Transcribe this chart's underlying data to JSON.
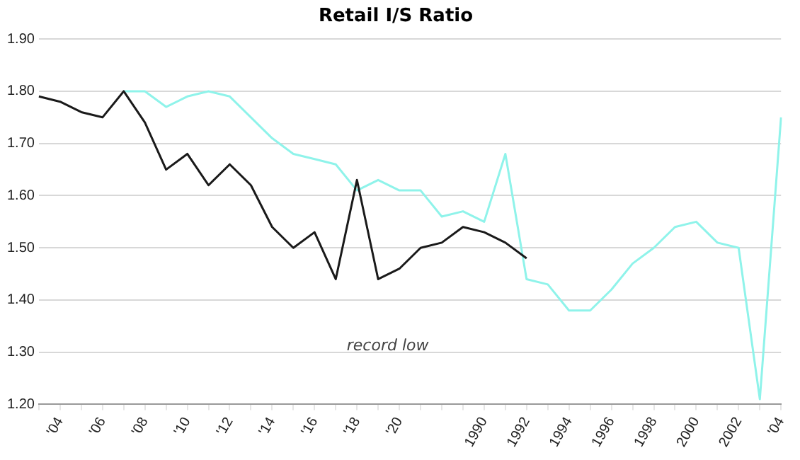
{
  "chart_data": {
    "type": "line",
    "title": "Retail I/S Ratio",
    "categories": [
      null,
      "'04",
      null,
      "'06",
      null,
      "'08",
      null,
      "'10",
      null,
      "'12",
      null,
      "'14",
      null,
      "'16",
      null,
      "'18",
      null,
      "'20",
      null,
      null,
      null,
      "1990",
      null,
      "1992",
      null,
      "1994",
      null,
      "1996",
      null,
      "1998",
      null,
      "2000",
      null,
      "2002",
      null,
      "'04"
    ],
    "ylim": [
      1.2,
      1.9
    ],
    "yticks": [
      {
        "value": 1.2,
        "label": "1.20"
      },
      {
        "value": 1.3,
        "label": "1.30"
      },
      {
        "value": 1.4,
        "label": "1.40"
      },
      {
        "value": 1.5,
        "label": "1.50"
      },
      {
        "value": 1.6,
        "label": "1.60"
      },
      {
        "value": 1.7,
        "label": "1.70"
      },
      {
        "value": 1.8,
        "label": "1.80"
      },
      {
        "value": 1.9,
        "label": "1.90"
      }
    ],
    "grid": "y",
    "legend": false,
    "marker": "none",
    "line_style": "solid",
    "annotations": [
      "record low"
    ],
    "series": [
      {
        "color": "#1a1a1a",
        "values": [
          1.79,
          1.78,
          1.76,
          1.75,
          1.8,
          1.74,
          1.65,
          1.68,
          1.62,
          1.66,
          1.62,
          1.54,
          1.5,
          1.53,
          1.44,
          1.63,
          1.44,
          1.46,
          1.5,
          1.51,
          1.54,
          1.53,
          1.51,
          1.48,
          null,
          null,
          null,
          null,
          null,
          null,
          null,
          null,
          null,
          null,
          null,
          null
        ]
      },
      {
        "color": "#8ff3ea",
        "values": [
          null,
          null,
          null,
          null,
          1.8,
          1.8,
          1.77,
          1.79,
          1.8,
          1.79,
          1.75,
          1.71,
          1.68,
          1.67,
          1.66,
          1.61,
          1.63,
          1.61,
          1.61,
          1.56,
          1.57,
          1.55,
          1.68,
          1.44,
          1.43,
          1.38,
          1.38,
          1.42,
          1.47,
          1.5,
          1.54,
          1.55,
          1.51,
          1.5,
          1.21,
          1.75
        ]
      }
    ]
  }
}
